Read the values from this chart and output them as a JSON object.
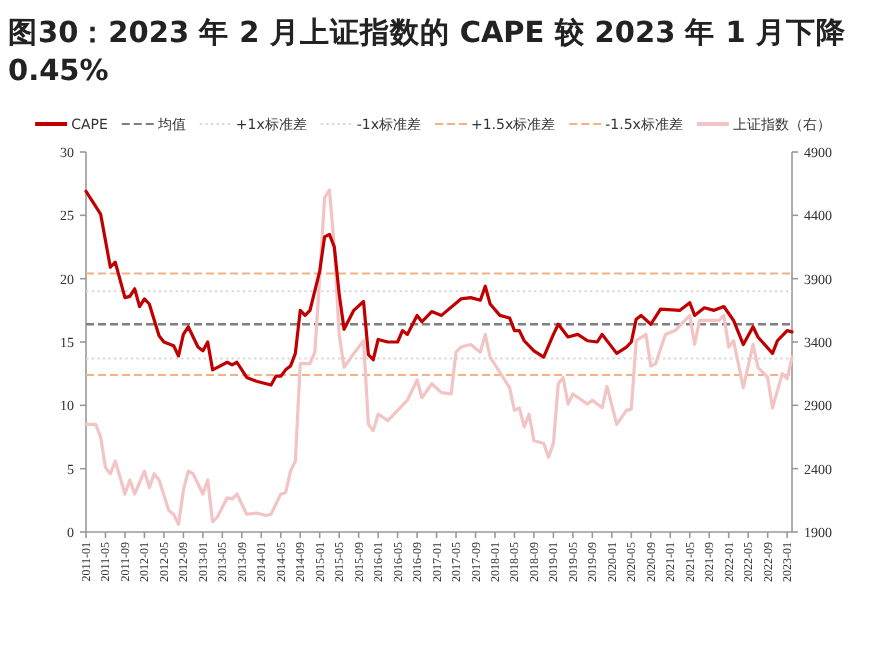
{
  "chart_data": {
    "type": "line",
    "title": "图30：2023 年 2 月上证指数的 CAPE 较 2023 年 1 月下降 0.45%",
    "legend": "top",
    "grid": false,
    "line_style": "solid",
    "xlim": [
      "2011-01",
      "2023-02"
    ],
    "xticks": [
      {
        "value": "2011-01",
        "label": "2011-01"
      },
      {
        "value": "2011-05",
        "label": "2011-05"
      },
      {
        "value": "2011-09",
        "label": "2011-09"
      },
      {
        "value": "2012-01",
        "label": "2012-01"
      },
      {
        "value": "2012-05",
        "label": "2012-05"
      },
      {
        "value": "2012-09",
        "label": "2012-09"
      },
      {
        "value": "2013-01",
        "label": "2013-01"
      },
      {
        "value": "2013-05",
        "label": "2013-05"
      },
      {
        "value": "2013-09",
        "label": "2013-09"
      },
      {
        "value": "2014-01",
        "label": "2014-01"
      },
      {
        "value": "2014-05",
        "label": "2014-05"
      },
      {
        "value": "2014-09",
        "label": "2014-09"
      },
      {
        "value": "2015-01",
        "label": "2015-01"
      },
      {
        "value": "2015-05",
        "label": "2015-05"
      },
      {
        "value": "2015-09",
        "label": "2015-09"
      },
      {
        "value": "2016-01",
        "label": "2016-01"
      },
      {
        "value": "2016-05",
        "label": "2016-05"
      },
      {
        "value": "2016-09",
        "label": "2016-09"
      },
      {
        "value": "2017-01",
        "label": "2017-01"
      },
      {
        "value": "2017-05",
        "label": "2017-05"
      },
      {
        "value": "2017-09",
        "label": "2017-09"
      },
      {
        "value": "2018-01",
        "label": "2018-01"
      },
      {
        "value": "2018-05",
        "label": "2018-05"
      },
      {
        "value": "2018-09",
        "label": "2018-09"
      },
      {
        "value": "2019-01",
        "label": "2019-01"
      },
      {
        "value": "2019-05",
        "label": "2019-05"
      },
      {
        "value": "2019-09",
        "label": "2019-09"
      },
      {
        "value": "2020-01",
        "label": "2020-01"
      },
      {
        "value": "2020-05",
        "label": "2020-05"
      },
      {
        "value": "2020-09",
        "label": "2020-09"
      },
      {
        "value": "2021-01",
        "label": "2021-01"
      },
      {
        "value": "2021-05",
        "label": "2021-05"
      },
      {
        "value": "2021-09",
        "label": "2021-09"
      },
      {
        "value": "2022-01",
        "label": "2022-01"
      },
      {
        "value": "2022-05",
        "label": "2022-05"
      },
      {
        "value": "2022-09",
        "label": "2022-09"
      },
      {
        "value": "2023-01",
        "label": "2023-01"
      }
    ],
    "ylim": [
      0,
      30
    ],
    "yticks": [
      0,
      5,
      10,
      15,
      20,
      25,
      30
    ],
    "y2lim": [
      1900,
      4900
    ],
    "y2ticks": [
      1900,
      2400,
      2900,
      3400,
      3900,
      4400,
      4900
    ],
    "ref_lines": [
      {
        "axis": "y",
        "value": 16.4,
        "label": "均值",
        "color": "#7f7f7f",
        "line_style": "dashed"
      },
      {
        "axis": "y",
        "value": 19.0,
        "label": "+1x标准差",
        "color": "#d9d9d9",
        "line_style": "dotted"
      },
      {
        "axis": "y",
        "value": 13.7,
        "label": "-1x标准差",
        "color": "#d9d9d9",
        "line_style": "dotted"
      },
      {
        "axis": "y",
        "value": 20.4,
        "label": "+1.5x标准差",
        "color": "#f4b183",
        "line_style": "dashed"
      },
      {
        "axis": "y",
        "value": 12.4,
        "label": "-1.5x标准差",
        "color": "#f4b183",
        "line_style": "dashed"
      }
    ],
    "series": [
      {
        "name": "CAPE",
        "color": "#c00000",
        "x": [
          "2011-01",
          "2011-02",
          "2011-04",
          "2011-05",
          "2011-06",
          "2011-07",
          "2011-09",
          "2011-10",
          "2011-11",
          "2011-12",
          "2012-01",
          "2012-02",
          "2012-04",
          "2012-05",
          "2012-07",
          "2012-08",
          "2012-09",
          "2012-10",
          "2012-12",
          "2013-01",
          "2013-02",
          "2013-03",
          "2013-04",
          "2013-06",
          "2013-07",
          "2013-08",
          "2013-10",
          "2013-12",
          "2014-03",
          "2014-04",
          "2014-05",
          "2014-06",
          "2014-07",
          "2014-08",
          "2014-09",
          "2014-10",
          "2014-11",
          "2015-01",
          "2015-02",
          "2015-03",
          "2015-04",
          "2015-05",
          "2015-06",
          "2015-08",
          "2015-10",
          "2015-11",
          "2015-12",
          "2016-01",
          "2016-03",
          "2016-05",
          "2016-06",
          "2016-07",
          "2016-09",
          "2016-10",
          "2016-12",
          "2017-02",
          "2017-06",
          "2017-08",
          "2017-10",
          "2017-11",
          "2017-12",
          "2018-02",
          "2018-04",
          "2018-05",
          "2018-06",
          "2018-07",
          "2018-09",
          "2018-11",
          "2019-01",
          "2019-02",
          "2019-04",
          "2019-06",
          "2019-08",
          "2019-10",
          "2019-11",
          "2020-02",
          "2020-04",
          "2020-05",
          "2020-06",
          "2020-07",
          "2020-09",
          "2020-11",
          "2021-03",
          "2021-05",
          "2021-06",
          "2021-08",
          "2021-10",
          "2021-12",
          "2022-02",
          "2022-04",
          "2022-06",
          "2022-07",
          "2022-10",
          "2022-11",
          "2023-01",
          "2023-02"
        ],
        "values": [
          26.9,
          26.3,
          25.1,
          23.0,
          20.9,
          21.3,
          18.5,
          18.6,
          19.2,
          17.8,
          18.4,
          18.0,
          15.5,
          15.0,
          14.7,
          13.9,
          15.6,
          16.2,
          14.6,
          14.3,
          15.0,
          12.8,
          13.0,
          13.4,
          13.2,
          13.4,
          12.2,
          11.9,
          11.6,
          12.3,
          12.3,
          12.8,
          13.1,
          14.1,
          17.5,
          17.1,
          17.5,
          20.6,
          23.3,
          23.5,
          22.5,
          18.8,
          16.0,
          17.5,
          18.2,
          14.0,
          13.6,
          15.2,
          15.0,
          15.0,
          15.9,
          15.6,
          17.1,
          16.6,
          17.4,
          17.1,
          18.4,
          18.5,
          18.3,
          19.4,
          18.0,
          17.1,
          16.9,
          15.9,
          15.9,
          15.1,
          14.3,
          13.8,
          15.6,
          16.4,
          15.4,
          15.6,
          15.1,
          15.0,
          15.6,
          14.1,
          14.6,
          15.0,
          16.8,
          17.1,
          16.4,
          17.6,
          17.5,
          18.1,
          17.1,
          17.7,
          17.5,
          17.8,
          16.7,
          14.8,
          16.2,
          15.4,
          14.1,
          15.1,
          15.9,
          15.8
        ]
      },
      {
        "name": "上证指数（右）",
        "color": "#f2c4c4",
        "axis": "y2",
        "x": [
          "2011-01",
          "2011-03",
          "2011-04",
          "2011-05",
          "2011-06",
          "2011-07",
          "2011-09",
          "2011-10",
          "2011-11",
          "2012-01",
          "2012-02",
          "2012-03",
          "2012-04",
          "2012-06",
          "2012-07",
          "2012-08",
          "2012-09",
          "2012-10",
          "2012-11",
          "2013-01",
          "2013-02",
          "2013-03",
          "2013-04",
          "2013-06",
          "2013-07",
          "2013-08",
          "2013-10",
          "2013-12",
          "2014-02",
          "2014-03",
          "2014-05",
          "2014-06",
          "2014-07",
          "2014-08",
          "2014-09",
          "2014-11",
          "2014-12",
          "2015-01",
          "2015-02",
          "2015-03",
          "2015-04",
          "2015-05",
          "2015-06",
          "2015-08",
          "2015-10",
          "2015-11",
          "2015-12",
          "2016-01",
          "2016-03",
          "2016-05",
          "2016-07",
          "2016-09",
          "2016-10",
          "2016-12",
          "2017-02",
          "2017-04",
          "2017-05",
          "2017-06",
          "2017-08",
          "2017-10",
          "2017-11",
          "2017-12",
          "2018-03",
          "2018-04",
          "2018-05",
          "2018-06",
          "2018-07",
          "2018-08",
          "2018-09",
          "2018-11",
          "2018-12",
          "2019-01",
          "2019-02",
          "2019-03",
          "2019-04",
          "2019-05",
          "2019-08",
          "2019-09",
          "2019-11",
          "2019-12",
          "2020-02",
          "2020-04",
          "2020-05",
          "2020-06",
          "2020-08",
          "2020-09",
          "2020-10",
          "2020-12",
          "2021-02",
          "2021-05",
          "2021-06",
          "2021-07",
          "2021-11",
          "2021-12",
          "2022-01",
          "2022-02",
          "2022-04",
          "2022-06",
          "2022-07",
          "2022-09",
          "2022-10",
          "2022-12",
          "2023-01",
          "2023-02"
        ],
        "values": [
          2750,
          2750,
          2650,
          2410,
          2360,
          2460,
          2200,
          2310,
          2200,
          2380,
          2250,
          2360,
          2310,
          2070,
          2040,
          1960,
          2230,
          2380,
          2360,
          2200,
          2310,
          1980,
          2020,
          2170,
          2160,
          2200,
          2040,
          2050,
          2030,
          2040,
          2200,
          2210,
          2380,
          2460,
          3230,
          3230,
          3320,
          3910,
          4540,
          4600,
          4150,
          3460,
          3200,
          3310,
          3410,
          2750,
          2700,
          2830,
          2780,
          2860,
          2940,
          3100,
          2960,
          3070,
          3000,
          2990,
          3320,
          3360,
          3380,
          3320,
          3460,
          3280,
          3100,
          3040,
          2860,
          2880,
          2730,
          2830,
          2620,
          2600,
          2490,
          2600,
          3070,
          3120,
          2910,
          2990,
          2910,
          2940,
          2880,
          3050,
          2750,
          2860,
          2870,
          3410,
          3460,
          3210,
          3230,
          3460,
          3490,
          3610,
          3380,
          3570,
          3570,
          3610,
          3360,
          3410,
          3040,
          3380,
          3200,
          3120,
          2880,
          3150,
          3110,
          3280
        ]
      }
    ]
  }
}
